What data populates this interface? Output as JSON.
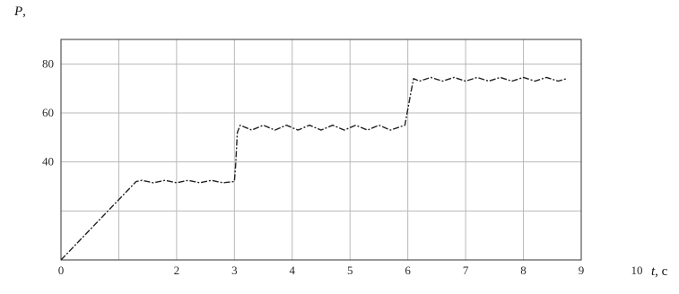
{
  "chart_data": {
    "type": "line",
    "title": "",
    "ylabel": {
      "symbol": "P",
      "suffix": ","
    },
    "xlabel": {
      "symbol": "t",
      "suffix": ", c"
    },
    "xlim": [
      0,
      9
    ],
    "ylim": [
      0,
      90
    ],
    "grid": true,
    "x_ticks": [
      {
        "value": 0,
        "label": "0"
      },
      {
        "value": 1,
        "label": ""
      },
      {
        "value": 2,
        "label": "2"
      },
      {
        "value": 3,
        "label": "3"
      },
      {
        "value": 4,
        "label": "4"
      },
      {
        "value": 5,
        "label": "5"
      },
      {
        "value": 6,
        "label": "6"
      },
      {
        "value": 7,
        "label": "7"
      },
      {
        "value": 8,
        "label": "8"
      },
      {
        "value": 9,
        "label": "9"
      }
    ],
    "x_end_label": "10",
    "y_ticks": [
      {
        "value": 0,
        "label": ""
      },
      {
        "value": 20,
        "label": ""
      },
      {
        "value": 40,
        "label": "40"
      },
      {
        "value": 60,
        "label": "60"
      },
      {
        "value": 80,
        "label": "80"
      }
    ],
    "series": [
      {
        "color": "#222222",
        "style": "dash-dot",
        "x": [
          0,
          1.3,
          1.4,
          1.6,
          1.8,
          2.0,
          2.2,
          2.4,
          2.6,
          2.8,
          3.0,
          3.02,
          3.05,
          3.1,
          3.3,
          3.5,
          3.7,
          3.9,
          4.1,
          4.3,
          4.5,
          4.7,
          4.9,
          5.1,
          5.3,
          5.5,
          5.7,
          5.95,
          6.05,
          6.1,
          6.2,
          6.4,
          6.6,
          6.8,
          7.0,
          7.2,
          7.4,
          7.6,
          7.8,
          8.0,
          8.2,
          8.4,
          8.6,
          8.75
        ],
        "y": [
          0,
          32,
          32.5,
          31.5,
          32.5,
          31.5,
          32.5,
          31.5,
          32.5,
          31.5,
          32,
          38,
          52,
          55,
          53,
          55,
          53,
          55,
          53,
          55,
          53,
          55,
          53,
          55,
          53,
          55,
          53,
          55,
          68,
          74,
          73,
          74.5,
          73,
          74.5,
          73,
          74.5,
          73,
          74.5,
          73,
          74.5,
          73,
          74.5,
          73,
          74
        ]
      }
    ]
  }
}
